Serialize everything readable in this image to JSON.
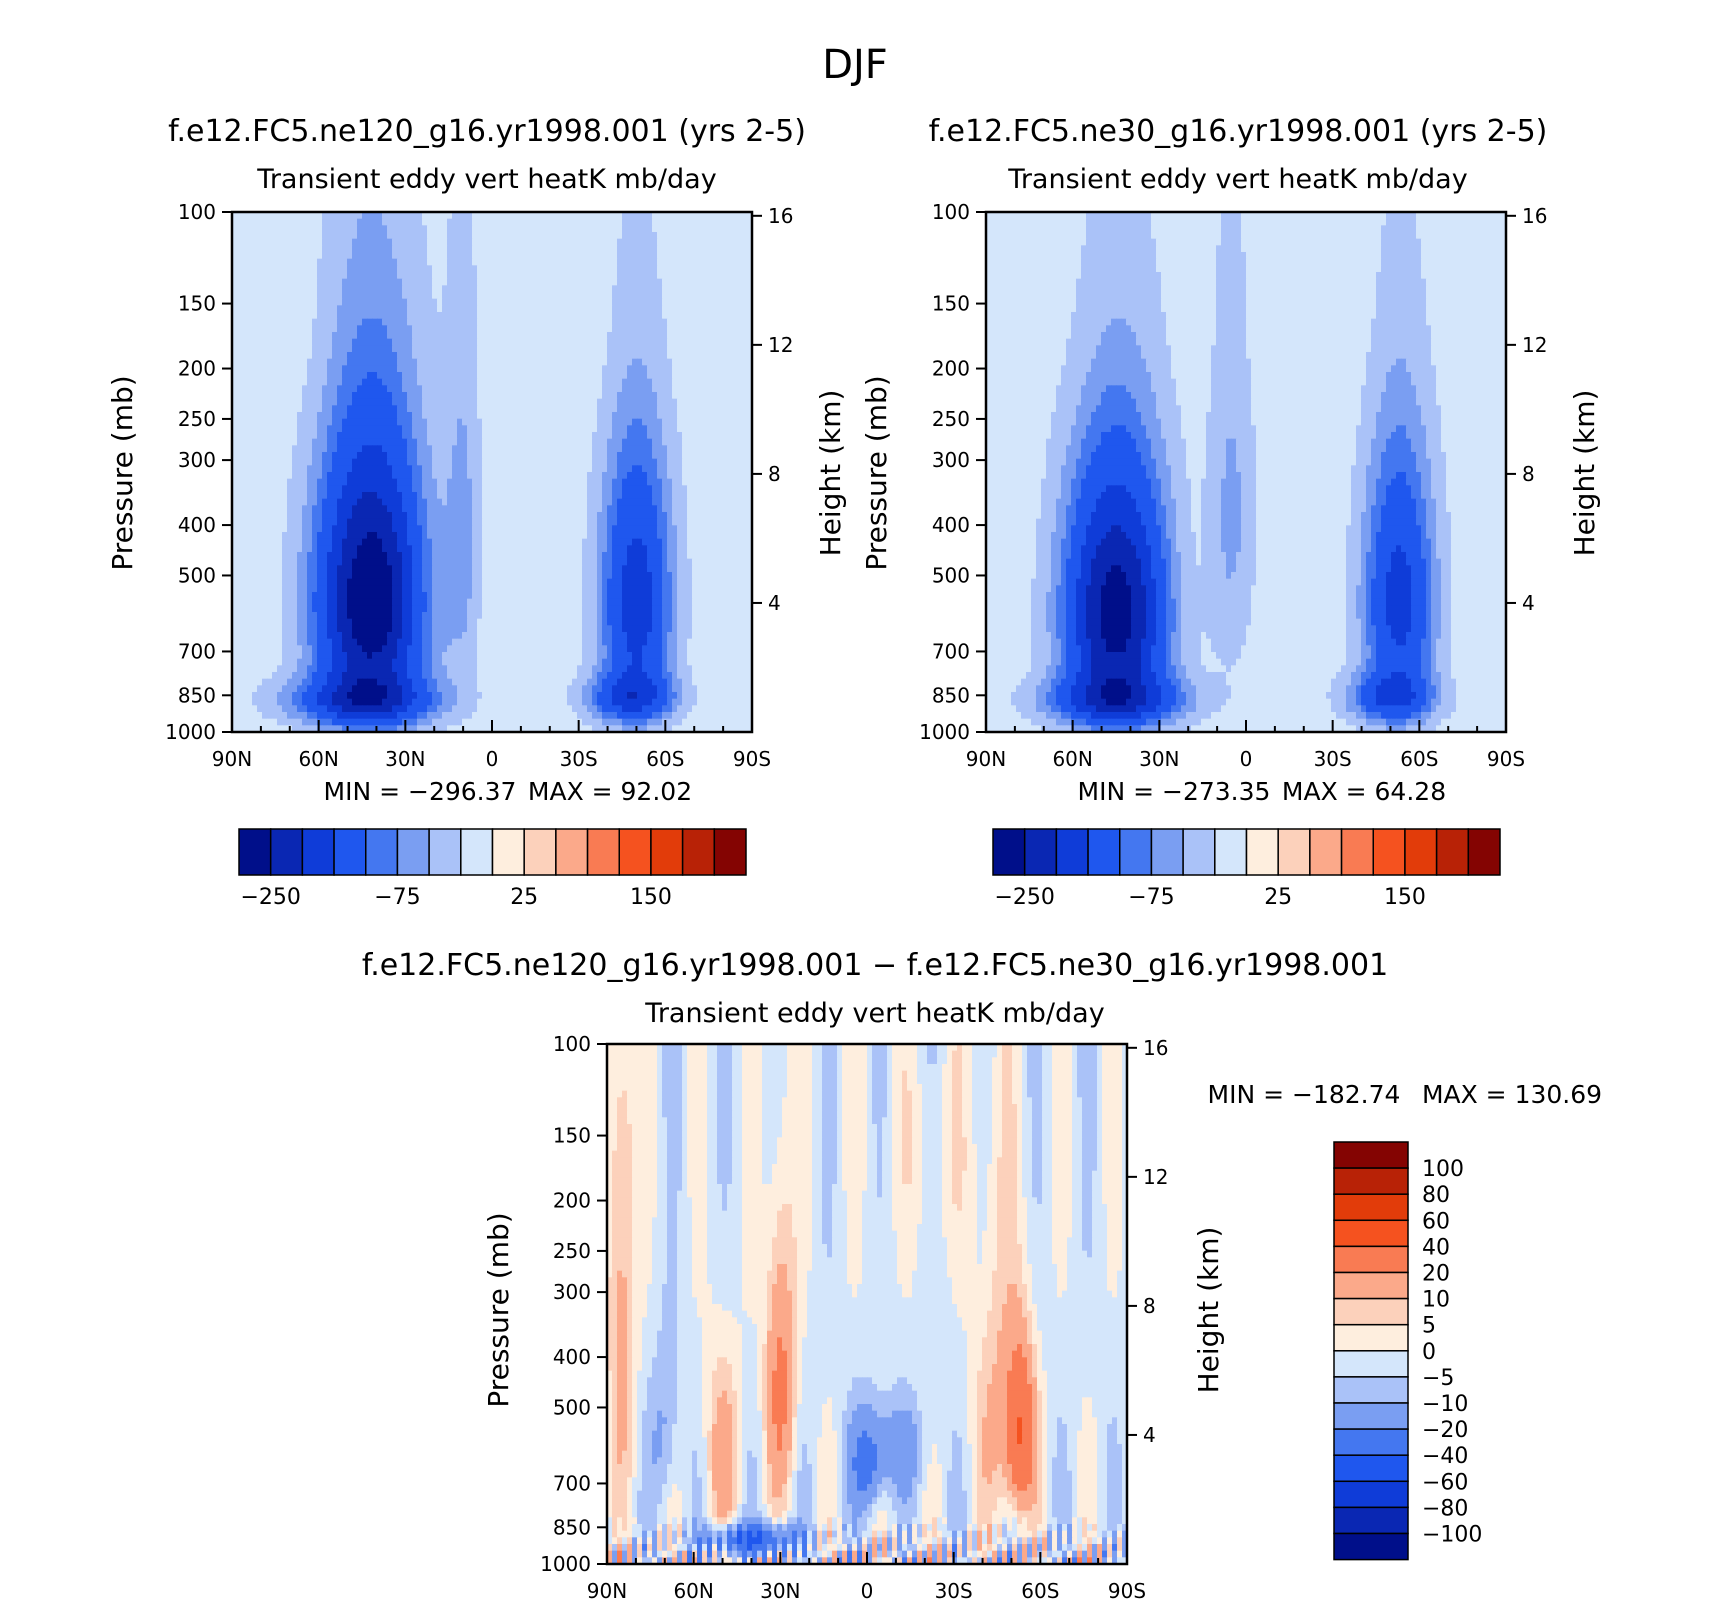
{
  "figure": {
    "title": "DJF",
    "tick_font_color": "#000000"
  },
  "chart_data": [
    {
      "type": "heatmap",
      "panel": "top-left",
      "title": "f.e12.FC5.ne120_g16.yr1998.001 (yrs 2-5)",
      "subtitle": "Transient eddy vert heatK mb/day",
      "ylabel": "Pressure (mb)",
      "ylabel_right": "Height (km)",
      "x_ticks": [
        "90N",
        "60N",
        "30N",
        "0",
        "30S",
        "60S",
        "90S"
      ],
      "x_range": [
        90,
        -90
      ],
      "y_ticks": [
        100,
        150,
        200,
        250,
        300,
        400,
        500,
        700,
        850,
        1000
      ],
      "y_range": [
        100,
        1000
      ],
      "height_ticks": [
        4,
        8,
        12,
        16
      ],
      "min_label": "MIN = −296.37",
      "max_label": "MAX = 92.02",
      "features": [
        {
          "lat": 42,
          "p": 560,
          "v": -290,
          "wlat": 18,
          "wp": 330
        },
        {
          "lat": 45,
          "p": 870,
          "v": -140,
          "wlat": 25,
          "wp": 90
        },
        {
          "lat": -50,
          "p": 560,
          "v": -170,
          "wlat": 12,
          "wp": 320
        },
        {
          "lat": -48,
          "p": 860,
          "v": -120,
          "wlat": 15,
          "wp": 90
        },
        {
          "lat": 10,
          "p": 420,
          "v": -45,
          "wlat": 6,
          "wp": 350
        },
        {
          "lat": -5,
          "p": 480,
          "v": 6,
          "wlat": 14,
          "wp": 180
        },
        {
          "lat": 25,
          "p": 540,
          "v": 10,
          "wlat": 6,
          "wp": 180
        },
        {
          "lat": 65,
          "p": 170,
          "v": 6,
          "wlat": 18,
          "wp": 90
        },
        {
          "lat": -40,
          "p": 170,
          "v": 6,
          "wlat": 28,
          "wp": 90
        }
      ]
    },
    {
      "type": "heatmap",
      "panel": "top-right",
      "title": "f.e12.FC5.ne30_g16.yr1998.001 (yrs 2-5)",
      "subtitle": "Transient eddy vert heatK mb/day",
      "ylabel": "Pressure (mb)",
      "ylabel_right": "Height (km)",
      "x_ticks": [
        "90N",
        "60N",
        "30N",
        "0",
        "30S",
        "60S",
        "90S"
      ],
      "x_range": [
        90,
        -90
      ],
      "y_ticks": [
        100,
        150,
        200,
        250,
        300,
        400,
        500,
        700,
        850,
        1000
      ],
      "y_range": [
        100,
        1000
      ],
      "height_ticks": [
        4,
        8,
        12,
        16
      ],
      "min_label": "MIN = −273.35",
      "max_label": "MAX = 64.28",
      "features": [
        {
          "lat": 45,
          "p": 590,
          "v": -270,
          "wlat": 17,
          "wp": 320
        },
        {
          "lat": 45,
          "p": 870,
          "v": -130,
          "wlat": 24,
          "wp": 90
        },
        {
          "lat": -53,
          "p": 560,
          "v": -160,
          "wlat": 12,
          "wp": 320
        },
        {
          "lat": -50,
          "p": 860,
          "v": -110,
          "wlat": 15,
          "wp": 90
        },
        {
          "lat": 5,
          "p": 380,
          "v": -45,
          "wlat": 8,
          "wp": 330
        },
        {
          "lat": -20,
          "p": 600,
          "v": 8,
          "wlat": 8,
          "wp": 90
        },
        {
          "lat": 20,
          "p": 520,
          "v": 8,
          "wlat": 5,
          "wp": 160
        },
        {
          "lat": 55,
          "p": 170,
          "v": 6,
          "wlat": 14,
          "wp": 90
        },
        {
          "lat": -20,
          "p": 160,
          "v": 6,
          "wlat": 40,
          "wp": 80
        }
      ]
    },
    {
      "type": "heatmap",
      "panel": "bottom",
      "title": "f.e12.FC5.ne120_g16.yr1998.001 − f.e12.FC5.ne30_g16.yr1998.001",
      "subtitle": "Transient eddy vert heatK mb/day",
      "ylabel": "Pressure (mb)",
      "ylabel_right": "Height (km)",
      "x_ticks": [
        "90N",
        "60N",
        "30N",
        "0",
        "30S",
        "60S",
        "90S"
      ],
      "x_range": [
        90,
        -90
      ],
      "y_ticks": [
        100,
        150,
        200,
        250,
        300,
        400,
        500,
        700,
        850,
        1000
      ],
      "y_range": [
        100,
        1000
      ],
      "height_ticks": [
        4,
        8,
        12,
        16
      ],
      "min_label": "MIN = −182.74",
      "max_label": "MAX = 130.69",
      "features": [
        {
          "lat": 85,
          "p": 300,
          "v": 15,
          "wlat": 5,
          "wp": 400
        },
        {
          "lat": 30,
          "p": 450,
          "v": 25,
          "wlat": 5,
          "wp": 260
        },
        {
          "lat": 50,
          "p": 620,
          "v": 15,
          "wlat": 6,
          "wp": 250
        },
        {
          "lat": -53,
          "p": 560,
          "v": 40,
          "wlat": 5,
          "wp": 200
        },
        {
          "lat": -45,
          "p": 500,
          "v": 12,
          "wlat": 8,
          "wp": 320
        },
        {
          "lat": 0,
          "p": 640,
          "v": -20,
          "wlat": 6,
          "wp": 140
        },
        {
          "lat": -10,
          "p": 600,
          "v": -12,
          "wlat": 10,
          "wp": 120
        },
        {
          "lat": 40,
          "p": 900,
          "v": -40,
          "wlat": 15,
          "wp": 60
        },
        {
          "lat": 70,
          "p": 560,
          "v": -10,
          "wlat": 5,
          "wp": 200
        },
        {
          "lat": -25,
          "p": 170,
          "v": 4,
          "wlat": 20,
          "wp": 80
        }
      ]
    }
  ],
  "colorbars": {
    "top": {
      "labels": [
        "−250",
        "−75",
        "25",
        "150"
      ],
      "colors": [
        "#000f8a",
        "#0a27b3",
        "#0f3cd8",
        "#1f57ee",
        "#4477f0",
        "#7a9ef2",
        "#aac2f8",
        "#d4e6fb",
        "#feeede",
        "#fcd1bb",
        "#fba98a",
        "#f97b53",
        "#f5521f",
        "#e23c0a",
        "#b82206",
        "#840402"
      ]
    },
    "bottom": {
      "labels": [
        "100",
        "80",
        "60",
        "40",
        "20",
        "10",
        "5",
        "0",
        "−5",
        "−10",
        "−20",
        "−40",
        "−60",
        "−80",
        "−100"
      ],
      "colors": [
        "#840402",
        "#b82206",
        "#e23c0a",
        "#f5521f",
        "#f97b53",
        "#fba98a",
        "#fcd1bb",
        "#feeede",
        "#d4e6fb",
        "#aac2f8",
        "#7a9ef2",
        "#4477f0",
        "#1f57ee",
        "#0f3cd8",
        "#0a27b3",
        "#000f8a"
      ]
    }
  }
}
